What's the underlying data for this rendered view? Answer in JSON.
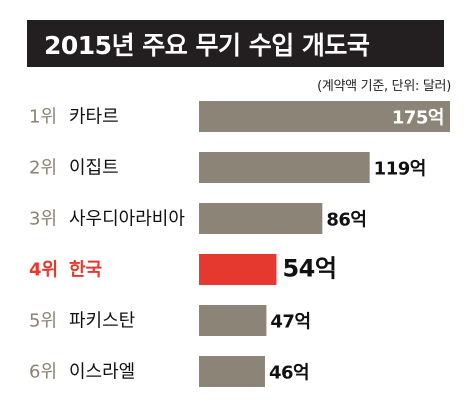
{
  "title": "2015년 주요 무기 수입 개도국",
  "note": "(계약액 기준, 단위: 달러)",
  "colors": {
    "title_bg": "#231f20",
    "bar": "#8c8577",
    "highlight_bar": "#e5382e",
    "rank_text": "#8a8373",
    "highlight_text": "#e5382e"
  },
  "chart_data": {
    "type": "bar",
    "orientation": "horizontal",
    "title": "2015년 주요 무기 수입 개도국",
    "unit_note": "(계약액 기준, 단위: 달러)",
    "categories": [
      "카타르",
      "이집트",
      "사우디아라비아",
      "한국",
      "파키스탄",
      "이스라엘"
    ],
    "ranks": [
      "1위",
      "2위",
      "3위",
      "4위",
      "5위",
      "6위"
    ],
    "values": [
      175,
      119,
      86,
      54,
      47,
      46
    ],
    "value_labels": [
      "175억",
      "119억",
      "86억",
      "54억",
      "47억",
      "46억"
    ],
    "highlight": "한국",
    "grid": false,
    "legend": "none"
  }
}
